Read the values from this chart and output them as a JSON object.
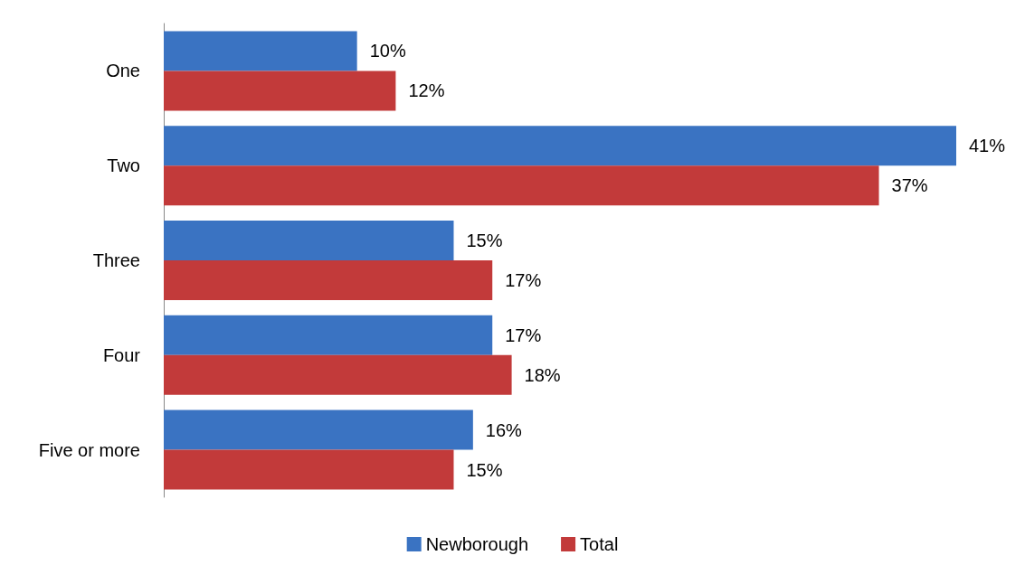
{
  "chart_data": {
    "type": "bar",
    "orientation": "horizontal",
    "relative": false,
    "categories": [
      "One",
      "Two",
      "Three",
      "Four",
      "Five or more"
    ],
    "series": [
      {
        "name": "Newborough",
        "color": "#3a73c2",
        "values": [
          10,
          41,
          15,
          17,
          16
        ],
        "value_labels": [
          "10%",
          "41%",
          "15%",
          "17%",
          "16%"
        ]
      },
      {
        "name": "Total",
        "color": "#c23a3a",
        "values": [
          12,
          37,
          17,
          18,
          15
        ],
        "value_labels": [
          "12%",
          "37%",
          "17%",
          "18%",
          "15%"
        ]
      }
    ],
    "legend": "bottom",
    "grid": false
  }
}
